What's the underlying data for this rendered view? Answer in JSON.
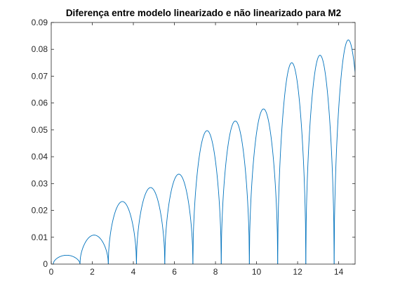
{
  "chart_data": {
    "type": "line",
    "title": "Diferença entre modelo linearizado e não linearizado para M2",
    "xlabel": "",
    "ylabel": "",
    "xlim": [
      0,
      14.8
    ],
    "ylim": [
      0,
      0.09
    ],
    "xticks": [
      "0",
      "2",
      "4",
      "6",
      "8",
      "10",
      "12",
      "14"
    ],
    "yticks": [
      "0",
      "0.01",
      "0.02",
      "0.03",
      "0.04",
      "0.05",
      "0.06",
      "0.07",
      "0.08",
      "0.09"
    ],
    "grid": false,
    "box": true,
    "line_color": "#0072BD",
    "series": [
      {
        "humps": [
          {
            "start": 0.1,
            "end": 1.4,
            "peak_x": 0.95,
            "peak_y": 0.0033
          },
          {
            "start": 1.4,
            "end": 2.78,
            "peak_x": 2.05,
            "peak_y": 0.0108
          },
          {
            "start": 2.78,
            "end": 4.15,
            "peak_x": 3.5,
            "peak_y": 0.0233
          },
          {
            "start": 4.15,
            "end": 5.53,
            "peak_x": 4.82,
            "peak_y": 0.0285
          },
          {
            "start": 5.53,
            "end": 6.9,
            "peak_x": 6.2,
            "peak_y": 0.0335
          },
          {
            "start": 6.9,
            "end": 8.28,
            "peak_x": 7.57,
            "peak_y": 0.0497
          },
          {
            "start": 8.28,
            "end": 9.65,
            "peak_x": 8.97,
            "peak_y": 0.0533
          },
          {
            "start": 9.65,
            "end": 11.03,
            "peak_x": 10.35,
            "peak_y": 0.0578
          },
          {
            "start": 11.03,
            "end": 12.4,
            "peak_x": 11.72,
            "peak_y": 0.075
          },
          {
            "start": 12.4,
            "end": 13.78,
            "peak_x": 13.1,
            "peak_y": 0.0778
          },
          {
            "start": 13.78,
            "end": 15.16,
            "peak_x": 14.47,
            "peak_y": 0.0835
          }
        ]
      }
    ]
  }
}
